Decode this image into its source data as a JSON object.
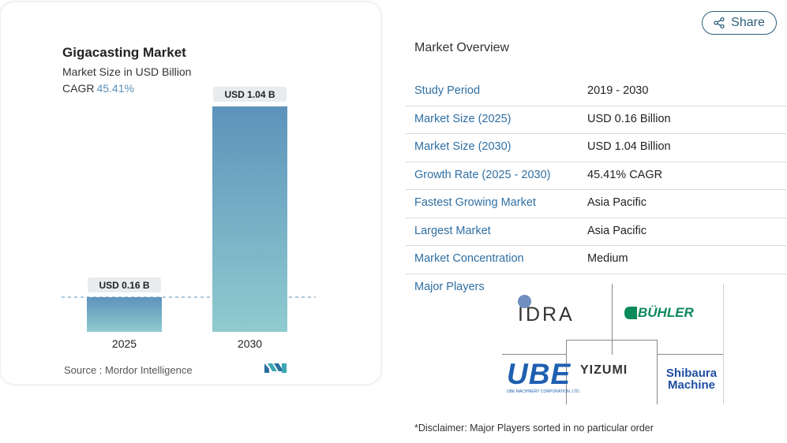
{
  "chart": {
    "title": "Gigacasting Market",
    "subtitle": "Market Size in USD Billion",
    "cagr_label": "CAGR",
    "cagr_value": "45.41%",
    "source": "Source :  Mordor Intelligence",
    "colors": {
      "bar_top": "#5d93bb",
      "bar_bottom": "#8fcbcf",
      "accent": "#5b8fb8"
    }
  },
  "chart_data": {
    "type": "bar",
    "categories": [
      "2025",
      "2030"
    ],
    "values": [
      0.16,
      1.04
    ],
    "data_labels": [
      "USD 0.16 B",
      "USD 1.04 B"
    ],
    "title": "Gigacasting Market",
    "subtitle": "Market Size in USD Billion",
    "xlabel": "",
    "ylabel": "",
    "ylim": [
      0,
      1.04
    ],
    "grid": false,
    "reference_line": "dashed line at 2025 value"
  },
  "share": {
    "label": "Share"
  },
  "overview": {
    "title": "Market Overview",
    "rows": [
      {
        "label": "Study Period",
        "value": "2019 - 2030"
      },
      {
        "label": "Market Size (2025)",
        "value": "USD 0.16 Billion"
      },
      {
        "label": "Market Size (2030)",
        "value": "USD 1.04 Billion"
      },
      {
        "label": "Growth Rate (2025 - 2030)",
        "value": "45.41% CAGR"
      },
      {
        "label": "Fastest Growing Market",
        "value": "Asia Pacific"
      },
      {
        "label": "Largest Market",
        "value": "Asia Pacific"
      },
      {
        "label": "Market Concentration",
        "value": "Medium"
      }
    ],
    "major_players_label": "Major Players",
    "players": [
      "IDRA",
      "BÜHLER",
      "UBE",
      "YIZUMI",
      "Shibaura Machine"
    ],
    "ube_tagline": "UBE MACHINERY CORPORATION, LTD.",
    "disclaimer": "*Disclaimer: Major Players sorted in no particular order"
  }
}
